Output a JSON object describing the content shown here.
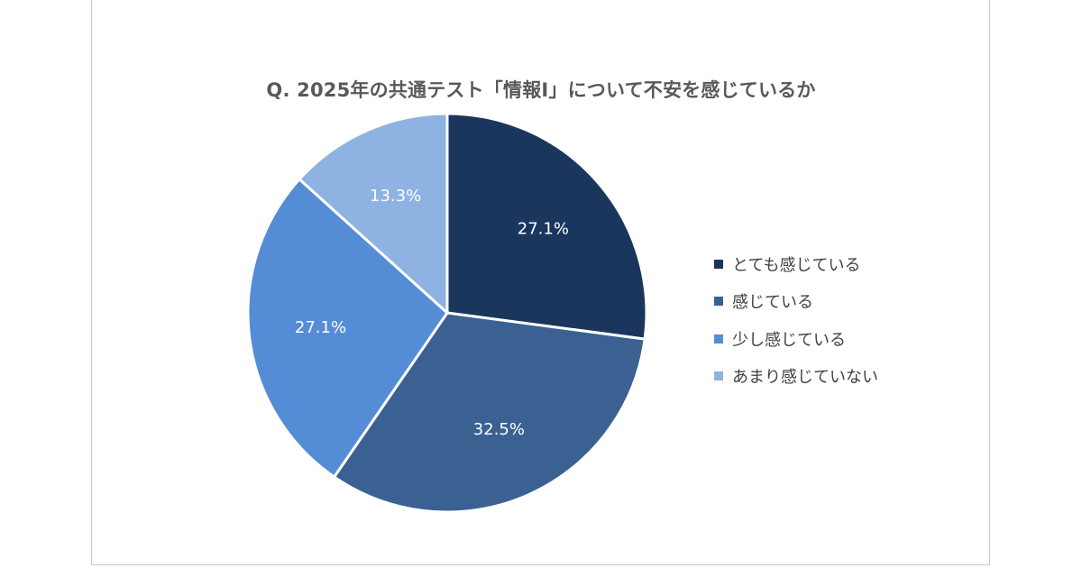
{
  "chart_data": {
    "type": "pie",
    "title": "Q. 2025年の共通テスト「情報Ⅰ」について不安を感じているか",
    "categories": [
      "とても感じている",
      "感じている",
      "少し感じている",
      "あまり感じていない"
    ],
    "values": [
      27.1,
      32.5,
      27.1,
      13.3
    ],
    "value_labels": [
      "27.1%",
      "32.5%",
      "27.1%",
      "13.3%"
    ],
    "colors": [
      "#1b365d",
      "#3a6192",
      "#558cd6",
      "#8eb2e2"
    ],
    "legend_position": "right",
    "start_angle": "12 o'clock",
    "direction": "clockwise"
  }
}
